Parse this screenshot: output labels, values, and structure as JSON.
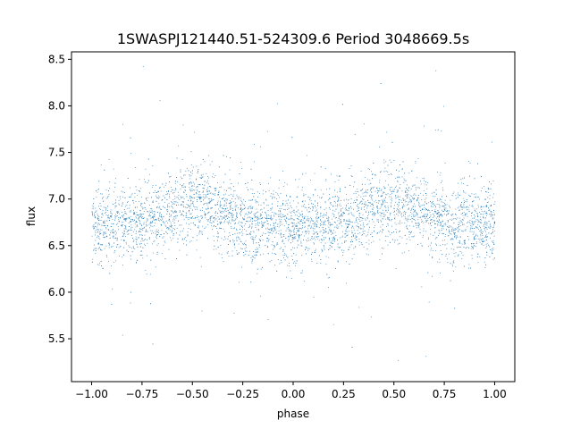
{
  "chart_data": {
    "type": "scatter",
    "title": "1SWASPJ121440.51-524309.6 Period 3048669.5s",
    "xlabel": "phase",
    "ylabel": "flux",
    "xlim": [
      -1.1,
      1.1
    ],
    "ylim": [
      5.04,
      8.58
    ],
    "xticks": [
      -1.0,
      -0.75,
      -0.5,
      -0.25,
      0.0,
      0.25,
      0.5,
      0.75,
      1.0
    ],
    "xtick_labels": [
      "−1.00",
      "−0.75",
      "−0.50",
      "−0.25",
      "0.00",
      "0.25",
      "0.50",
      "0.75",
      "1.00"
    ],
    "yticks": [
      5.5,
      6.0,
      6.5,
      7.0,
      7.5,
      8.0,
      8.5
    ],
    "ytick_labels": [
      "5.5",
      "6.0",
      "6.5",
      "7.0",
      "7.5",
      "8.0",
      "8.5"
    ],
    "grid": false,
    "marker_color": "#1f77b4",
    "phase_range": [
      -1.0,
      1.0
    ],
    "baseline_flux": 6.72,
    "brightening_phases": [
      -0.5,
      0.5
    ],
    "peak_flux": 6.97,
    "typical_scatter": 0.2,
    "flux_min": 5.2,
    "flux_max": 8.45
  }
}
